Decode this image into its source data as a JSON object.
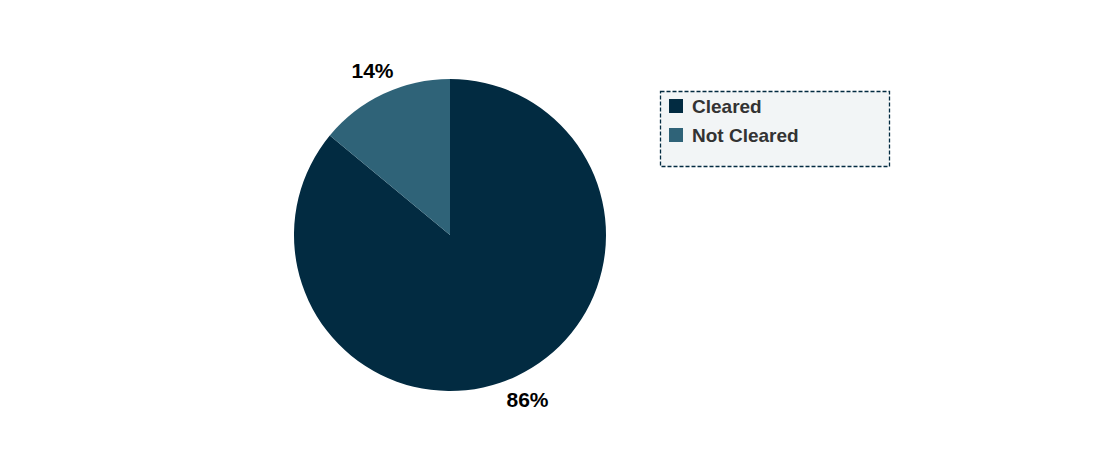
{
  "chart_data": {
    "type": "pie",
    "categories": [
      "Cleared",
      "Not Cleared"
    ],
    "values": [
      86,
      14
    ],
    "value_labels": [
      "86%",
      "14%"
    ],
    "colors": [
      "#022b41",
      "#2f6378"
    ],
    "data_labels": true,
    "legend": "right"
  }
}
